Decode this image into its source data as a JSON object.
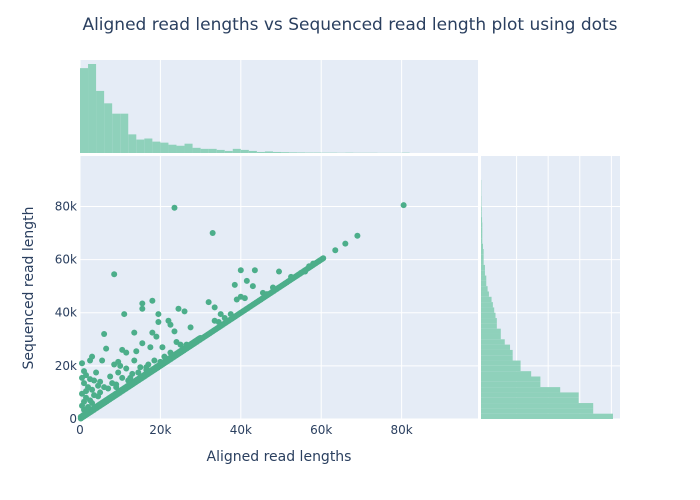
{
  "chart_data": {
    "type": "scatter",
    "title": "Aligned read lengths vs Sequenced read length plot using dots",
    "xlabel": "Aligned read lengths",
    "ylabel": "Sequenced read length",
    "xlim": [
      0,
      99000
    ],
    "ylim": [
      0,
      99000
    ],
    "x_ticks": [
      0,
      20000,
      40000,
      60000,
      80000
    ],
    "x_tick_labels": [
      "0",
      "20k",
      "40k",
      "60k",
      "80k"
    ],
    "y_ticks": [
      0,
      20000,
      40000,
      60000,
      80000
    ],
    "y_tick_labels": [
      "0",
      "20k",
      "40k",
      "60k",
      "80k"
    ],
    "color": "#4cae8a",
    "marginal_color": "#8fd1bb",
    "background": "#e5ecf6",
    "diagonal_extent": [
      200,
      60500
    ],
    "points": [
      {
        "x": 23500,
        "y": 79500
      },
      {
        "x": 80500,
        "y": 80500
      },
      {
        "x": 33000,
        "y": 70000
      },
      {
        "x": 69000,
        "y": 69000
      },
      {
        "x": 66000,
        "y": 66000
      },
      {
        "x": 63500,
        "y": 63500
      },
      {
        "x": 40000,
        "y": 56000
      },
      {
        "x": 43500,
        "y": 56000
      },
      {
        "x": 49500,
        "y": 55500
      },
      {
        "x": 56000,
        "y": 55500
      },
      {
        "x": 8500,
        "y": 54500
      },
      {
        "x": 52500,
        "y": 53500
      },
      {
        "x": 41500,
        "y": 52000
      },
      {
        "x": 38500,
        "y": 50500
      },
      {
        "x": 43000,
        "y": 50000
      },
      {
        "x": 48000,
        "y": 49500
      },
      {
        "x": 40000,
        "y": 46000
      },
      {
        "x": 39000,
        "y": 45000
      },
      {
        "x": 41000,
        "y": 45500
      },
      {
        "x": 32000,
        "y": 44000
      },
      {
        "x": 18000,
        "y": 44500
      },
      {
        "x": 15500,
        "y": 43500
      },
      {
        "x": 33500,
        "y": 42000
      },
      {
        "x": 24500,
        "y": 41500
      },
      {
        "x": 15500,
        "y": 41500
      },
      {
        "x": 26000,
        "y": 40500
      },
      {
        "x": 11000,
        "y": 39500
      },
      {
        "x": 19500,
        "y": 39500
      },
      {
        "x": 35000,
        "y": 39500
      },
      {
        "x": 36000,
        "y": 38000
      },
      {
        "x": 22000,
        "y": 37000
      },
      {
        "x": 19500,
        "y": 36500
      },
      {
        "x": 33500,
        "y": 37000
      },
      {
        "x": 22500,
        "y": 35500
      },
      {
        "x": 27500,
        "y": 34500
      },
      {
        "x": 23500,
        "y": 33000
      },
      {
        "x": 13500,
        "y": 32500
      },
      {
        "x": 6000,
        "y": 32000
      },
      {
        "x": 18000,
        "y": 32500
      },
      {
        "x": 19000,
        "y": 31000
      },
      {
        "x": 24000,
        "y": 29000
      },
      {
        "x": 15500,
        "y": 28500
      },
      {
        "x": 20500,
        "y": 27000
      },
      {
        "x": 17500,
        "y": 27000
      },
      {
        "x": 6500,
        "y": 26500
      },
      {
        "x": 10500,
        "y": 26000
      },
      {
        "x": 11500,
        "y": 25000
      },
      {
        "x": 14000,
        "y": 25500
      },
      {
        "x": 3000,
        "y": 23500
      },
      {
        "x": 2500,
        "y": 22000
      },
      {
        "x": 5500,
        "y": 22000
      },
      {
        "x": 13500,
        "y": 22000
      },
      {
        "x": 9500,
        "y": 21500
      },
      {
        "x": 500,
        "y": 21000
      },
      {
        "x": 8500,
        "y": 20500
      },
      {
        "x": 10000,
        "y": 20000
      },
      {
        "x": 15000,
        "y": 19500
      },
      {
        "x": 11500,
        "y": 19000
      },
      {
        "x": 16500,
        "y": 18500
      },
      {
        "x": 1000,
        "y": 18000
      },
      {
        "x": 9500,
        "y": 17500
      },
      {
        "x": 4000,
        "y": 17500
      },
      {
        "x": 13000,
        "y": 17000
      },
      {
        "x": 1500,
        "y": 16500
      },
      {
        "x": 500,
        "y": 15500
      },
      {
        "x": 7500,
        "y": 16000
      },
      {
        "x": 2500,
        "y": 15000
      },
      {
        "x": 10500,
        "y": 15500
      },
      {
        "x": 12000,
        "y": 14500
      },
      {
        "x": 3500,
        "y": 14500
      },
      {
        "x": 5000,
        "y": 14000
      },
      {
        "x": 8000,
        "y": 13500
      },
      {
        "x": 1000,
        "y": 13500
      },
      {
        "x": 9000,
        "y": 13000
      },
      {
        "x": 4500,
        "y": 12500
      },
      {
        "x": 2000,
        "y": 12000
      },
      {
        "x": 6000,
        "y": 12000
      },
      {
        "x": 3000,
        "y": 11000
      },
      {
        "x": 7000,
        "y": 11500
      },
      {
        "x": 1500,
        "y": 10500
      },
      {
        "x": 5000,
        "y": 10000
      },
      {
        "x": 500,
        "y": 9500
      },
      {
        "x": 3500,
        "y": 9000
      },
      {
        "x": 1500,
        "y": 8000
      },
      {
        "x": 4500,
        "y": 8500
      },
      {
        "x": 2500,
        "y": 7000
      },
      {
        "x": 1000,
        "y": 6500
      },
      {
        "x": 3000,
        "y": 6000
      },
      {
        "x": 500,
        "y": 5000
      },
      {
        "x": 2000,
        "y": 4500
      },
      {
        "x": 1000,
        "y": 3500
      },
      {
        "x": 1500,
        "y": 2500
      },
      {
        "x": 28500,
        "y": 29000
      },
      {
        "x": 30000,
        "y": 30500
      },
      {
        "x": 25000,
        "y": 28000
      },
      {
        "x": 21000,
        "y": 23500
      },
      {
        "x": 18500,
        "y": 22000
      },
      {
        "x": 22500,
        "y": 25000
      },
      {
        "x": 26500,
        "y": 28000
      },
      {
        "x": 16500,
        "y": 19500
      },
      {
        "x": 20000,
        "y": 21500
      },
      {
        "x": 34500,
        "y": 36500
      },
      {
        "x": 37500,
        "y": 39500
      },
      {
        "x": 45500,
        "y": 47500
      },
      {
        "x": 46500,
        "y": 47000
      },
      {
        "x": 58000,
        "y": 58500
      },
      {
        "x": 59500,
        "y": 59500
      },
      {
        "x": 60500,
        "y": 60500
      },
      {
        "x": 57000,
        "y": 57500
      },
      {
        "x": 55000,
        "y": 55000
      },
      {
        "x": 12500,
        "y": 15500
      },
      {
        "x": 9000,
        "y": 12000
      },
      {
        "x": 14500,
        "y": 17500
      },
      {
        "x": 17000,
        "y": 20500
      }
    ],
    "x_marginal_hist": {
      "bin_width": 2000,
      "counts": [
        82,
        86,
        60,
        48,
        38,
        38,
        18,
        13,
        14,
        11,
        10,
        8,
        7,
        9,
        5,
        4,
        4,
        3,
        2,
        4,
        3,
        2,
        1,
        1.5,
        1,
        0.8,
        0.6,
        0.5,
        0.4,
        0.4,
        0.3,
        0.3,
        0.2,
        0.3,
        0.2,
        0.2,
        0.2,
        0.1,
        0.1,
        0.1,
        0.3
      ]
    },
    "y_marginal_hist": {
      "bin_width": 2000,
      "counts": [
        100,
        85,
        85,
        74,
        74,
        60,
        45,
        45,
        38,
        30,
        30,
        24,
        24,
        22,
        18,
        15,
        15,
        12,
        12,
        11,
        10,
        9,
        8,
        6,
        5,
        4,
        4,
        3,
        3,
        2,
        2,
        2,
        1.5,
        1,
        1,
        1,
        1,
        0.8,
        0.5,
        0.5,
        0.3,
        0.3,
        0.2,
        0.2,
        0.2
      ]
    }
  }
}
